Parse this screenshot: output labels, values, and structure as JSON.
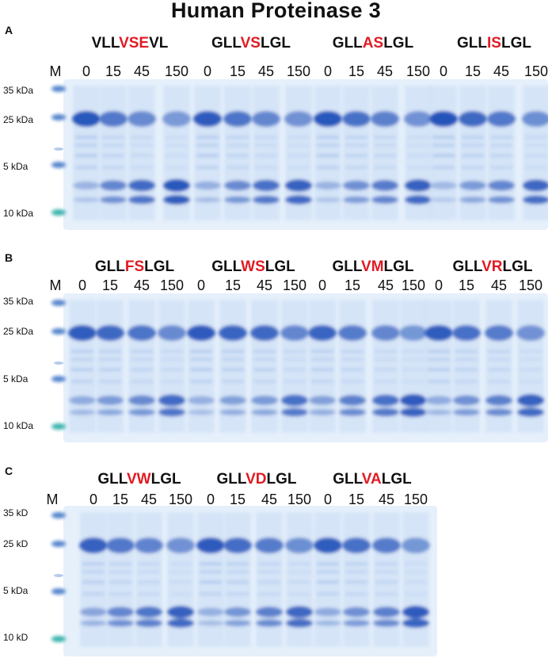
{
  "title": "Human Proteinase 3",
  "marker_head": "M",
  "colors": {
    "mutation": "#e01b23",
    "gel_bg": "#e6f0fb",
    "band": "#1f4fb8"
  },
  "panels": [
    {
      "letter": "A",
      "mw_labels": [
        "35 kDa",
        "25 kDa",
        "5 kDa",
        "10 kDa"
      ],
      "substrates": [
        {
          "pre": "VLL",
          "mut": "VSE",
          "post": "VL"
        },
        {
          "pre": "GLL",
          "mut": "VS",
          "post": "LGL"
        },
        {
          "pre": "GLL",
          "mut": "AS",
          "post": "LGL"
        },
        {
          "pre": "GLL",
          "mut": "IS",
          "post": "LGL"
        }
      ],
      "timepoints": [
        "0",
        "15",
        "45",
        "150"
      ],
      "cleavage": [
        [
          0.1,
          0.55,
          0.8,
          1.0
        ],
        [
          0.15,
          0.5,
          0.75,
          0.9
        ],
        [
          0.1,
          0.45,
          0.65,
          0.9
        ],
        [
          0.05,
          0.35,
          0.55,
          0.85
        ]
      ]
    },
    {
      "letter": "B",
      "mw_labels": [
        "35 kDa",
        "25 kDa",
        "5 kDa",
        "10 kDa"
      ],
      "substrates": [
        {
          "pre": "GLL",
          "mut": "FS",
          "post": "LGL"
        },
        {
          "pre": "GLL",
          "mut": "WS",
          "post": "LGL"
        },
        {
          "pre": "GLL",
          "mut": "VM",
          "post": "LGL"
        },
        {
          "pre": "GLL",
          "mut": "VR",
          "post": "LGL"
        }
      ],
      "timepoints": [
        "0",
        "15",
        "45",
        "150"
      ],
      "cleavage": [
        [
          0.2,
          0.35,
          0.5,
          0.8
        ],
        [
          0.15,
          0.3,
          0.35,
          0.75
        ],
        [
          0.3,
          0.6,
          0.75,
          0.95
        ],
        [
          0.2,
          0.45,
          0.6,
          0.9
        ]
      ]
    },
    {
      "letter": "C",
      "mw_labels": [
        "35 kD",
        "25 kD",
        "5 kDa",
        "10 kD"
      ],
      "substrates": [
        {
          "pre": "GLL",
          "mut": "VW",
          "post": "LGL"
        },
        {
          "pre": "GLL",
          "mut": "VD",
          "post": "LGL"
        },
        {
          "pre": "GLL",
          "mut": "VA",
          "post": "LGL"
        }
      ],
      "timepoints": [
        "0",
        "15",
        "45",
        "150"
      ],
      "cleavage": [
        [
          0.25,
          0.55,
          0.7,
          0.9
        ],
        [
          0.15,
          0.4,
          0.6,
          0.85
        ],
        [
          0.2,
          0.45,
          0.6,
          0.95
        ]
      ]
    }
  ]
}
